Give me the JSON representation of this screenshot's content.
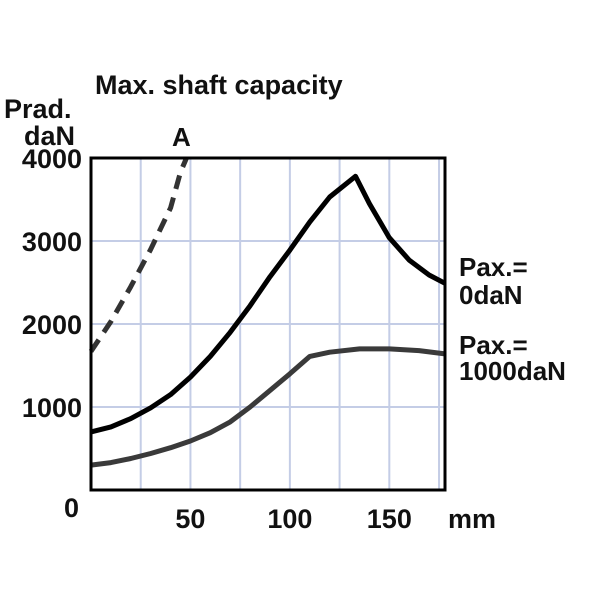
{
  "chart_data": {
    "type": "line",
    "title": "Max. shaft capacity",
    "ylabel_line1": "Prad.",
    "ylabel_line2": "daN",
    "xlabel": "mm",
    "xlim": [
      0,
      178
    ],
    "ylim": [
      0,
      4000
    ],
    "xticks": [
      {
        "value": 0,
        "label": ""
      },
      {
        "value": 50,
        "label": "50"
      },
      {
        "value": 100,
        "label": "100"
      },
      {
        "value": 150,
        "label": "150"
      }
    ],
    "origin_label": "0",
    "yticks": [
      {
        "value": 1000,
        "label": "1000"
      },
      {
        "value": 2000,
        "label": "2000"
      },
      {
        "value": 3000,
        "label": "3000"
      },
      {
        "value": 4000,
        "label": "4000"
      }
    ],
    "grid": true,
    "series": [
      {
        "name": "A",
        "style": "dashed",
        "color": "#333333",
        "points": [
          [
            0,
            1670
          ],
          [
            10,
            2030
          ],
          [
            20,
            2450
          ],
          [
            30,
            2900
          ],
          [
            40,
            3400
          ],
          [
            45,
            3830
          ],
          [
            48,
            4000
          ]
        ]
      },
      {
        "name_line1": "Pax.=",
        "name_line2": "0daN",
        "style": "solid",
        "color": "#000000",
        "points": [
          [
            0,
            700
          ],
          [
            10,
            760
          ],
          [
            20,
            860
          ],
          [
            30,
            990
          ],
          [
            40,
            1150
          ],
          [
            50,
            1360
          ],
          [
            60,
            1610
          ],
          [
            70,
            1900
          ],
          [
            80,
            2220
          ],
          [
            90,
            2570
          ],
          [
            100,
            2890
          ],
          [
            110,
            3230
          ],
          [
            120,
            3530
          ],
          [
            133,
            3780
          ],
          [
            140,
            3450
          ],
          [
            150,
            3040
          ],
          [
            160,
            2770
          ],
          [
            170,
            2590
          ],
          [
            178,
            2490
          ]
        ]
      },
      {
        "name_line1": "Pax.=",
        "name_line2": "1000daN",
        "style": "solid",
        "color": "#3a3a3a",
        "points": [
          [
            0,
            300
          ],
          [
            10,
            330
          ],
          [
            20,
            380
          ],
          [
            30,
            440
          ],
          [
            40,
            510
          ],
          [
            50,
            590
          ],
          [
            60,
            690
          ],
          [
            70,
            820
          ],
          [
            80,
            1000
          ],
          [
            90,
            1200
          ],
          [
            100,
            1400
          ],
          [
            110,
            1610
          ],
          [
            120,
            1660
          ],
          [
            135,
            1700
          ],
          [
            150,
            1700
          ],
          [
            165,
            1680
          ],
          [
            178,
            1640
          ]
        ]
      }
    ]
  }
}
